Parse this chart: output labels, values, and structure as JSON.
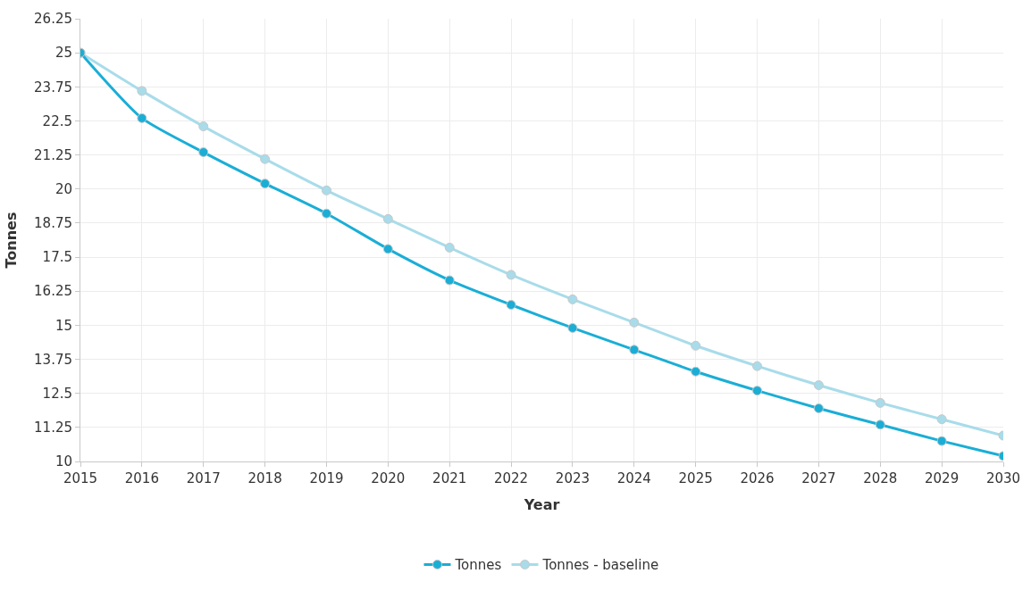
{
  "chart_data": {
    "type": "line",
    "xlabel": "Year",
    "ylabel": "Tonnes",
    "x": [
      2015,
      2016,
      2017,
      2018,
      2019,
      2020,
      2021,
      2022,
      2023,
      2024,
      2025,
      2026,
      2027,
      2028,
      2029,
      2030
    ],
    "series": [
      {
        "name": "Tonnes",
        "color": "#1aaed6",
        "values": [
          25.0,
          22.6,
          21.35,
          20.2,
          19.1,
          17.8,
          16.65,
          15.75,
          14.9,
          14.1,
          13.3,
          12.6,
          11.95,
          11.35,
          10.75,
          10.2
        ]
      },
      {
        "name": "Tonnes - baseline",
        "color": "#a8dcea",
        "values": [
          25.0,
          23.6,
          22.3,
          21.1,
          19.95,
          18.9,
          17.85,
          16.85,
          15.95,
          15.1,
          14.25,
          13.5,
          12.8,
          12.15,
          11.55,
          10.95
        ]
      }
    ],
    "xlim": [
      2015,
      2030
    ],
    "xticks": [
      2015,
      2016,
      2017,
      2018,
      2019,
      2020,
      2021,
      2022,
      2023,
      2024,
      2025,
      2026,
      2027,
      2028,
      2029,
      2030
    ],
    "ylim": [
      10,
      26.25
    ],
    "yticks": [
      10,
      11.25,
      12.5,
      13.75,
      15,
      16.25,
      17.5,
      18.75,
      20,
      21.25,
      22.5,
      23.75,
      25,
      26.25
    ],
    "grid": true,
    "legend": "bottom",
    "marker": "circle",
    "line_style": "solid"
  }
}
